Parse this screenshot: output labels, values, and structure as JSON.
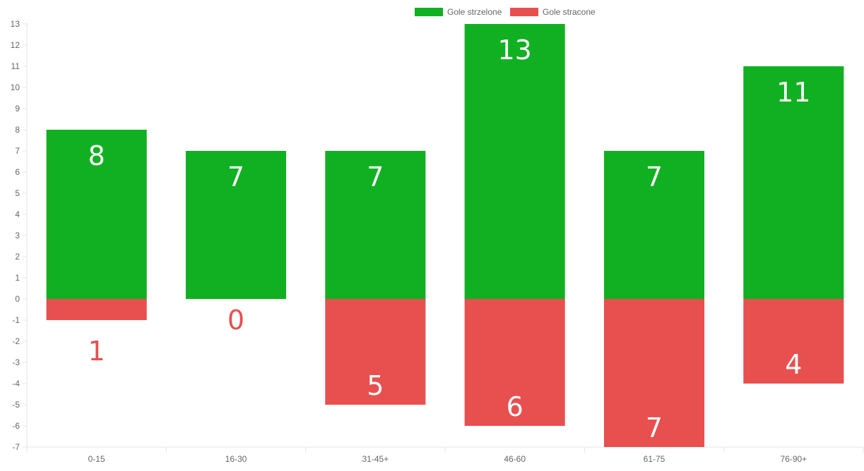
{
  "chart_data": {
    "type": "bar",
    "categories": [
      "0-15",
      "16-30",
      "31-45+",
      "46-60",
      "61-75",
      "76-90+"
    ],
    "series": [
      {
        "name": "Gole strzelone",
        "values": [
          8,
          7,
          7,
          13,
          7,
          11
        ],
        "labels": [
          "8",
          "7",
          "7",
          "13",
          "7",
          "11"
        ],
        "color": "#11b022",
        "label_color": "#ffffff"
      },
      {
        "name": "Gole stracone",
        "values": [
          -1,
          0,
          -5,
          -6,
          -7,
          -4
        ],
        "labels": [
          "1",
          "0",
          "5",
          "6",
          "7",
          "4"
        ],
        "color": "#e84f4f",
        "label_color_inside": "#ffffff",
        "label_color_outside": "#e84f4f"
      }
    ],
    "y_ticks": [
      "13",
      "12",
      "11",
      "10",
      "9",
      "8",
      "7",
      "6",
      "5",
      "4",
      "3",
      "2",
      "1",
      "0",
      "-1",
      "-2",
      "-3",
      "-4",
      "-5",
      "-6",
      "-7"
    ],
    "ylim": [
      -7,
      13
    ],
    "grid": false,
    "legend_position": "top",
    "stacked": true
  }
}
